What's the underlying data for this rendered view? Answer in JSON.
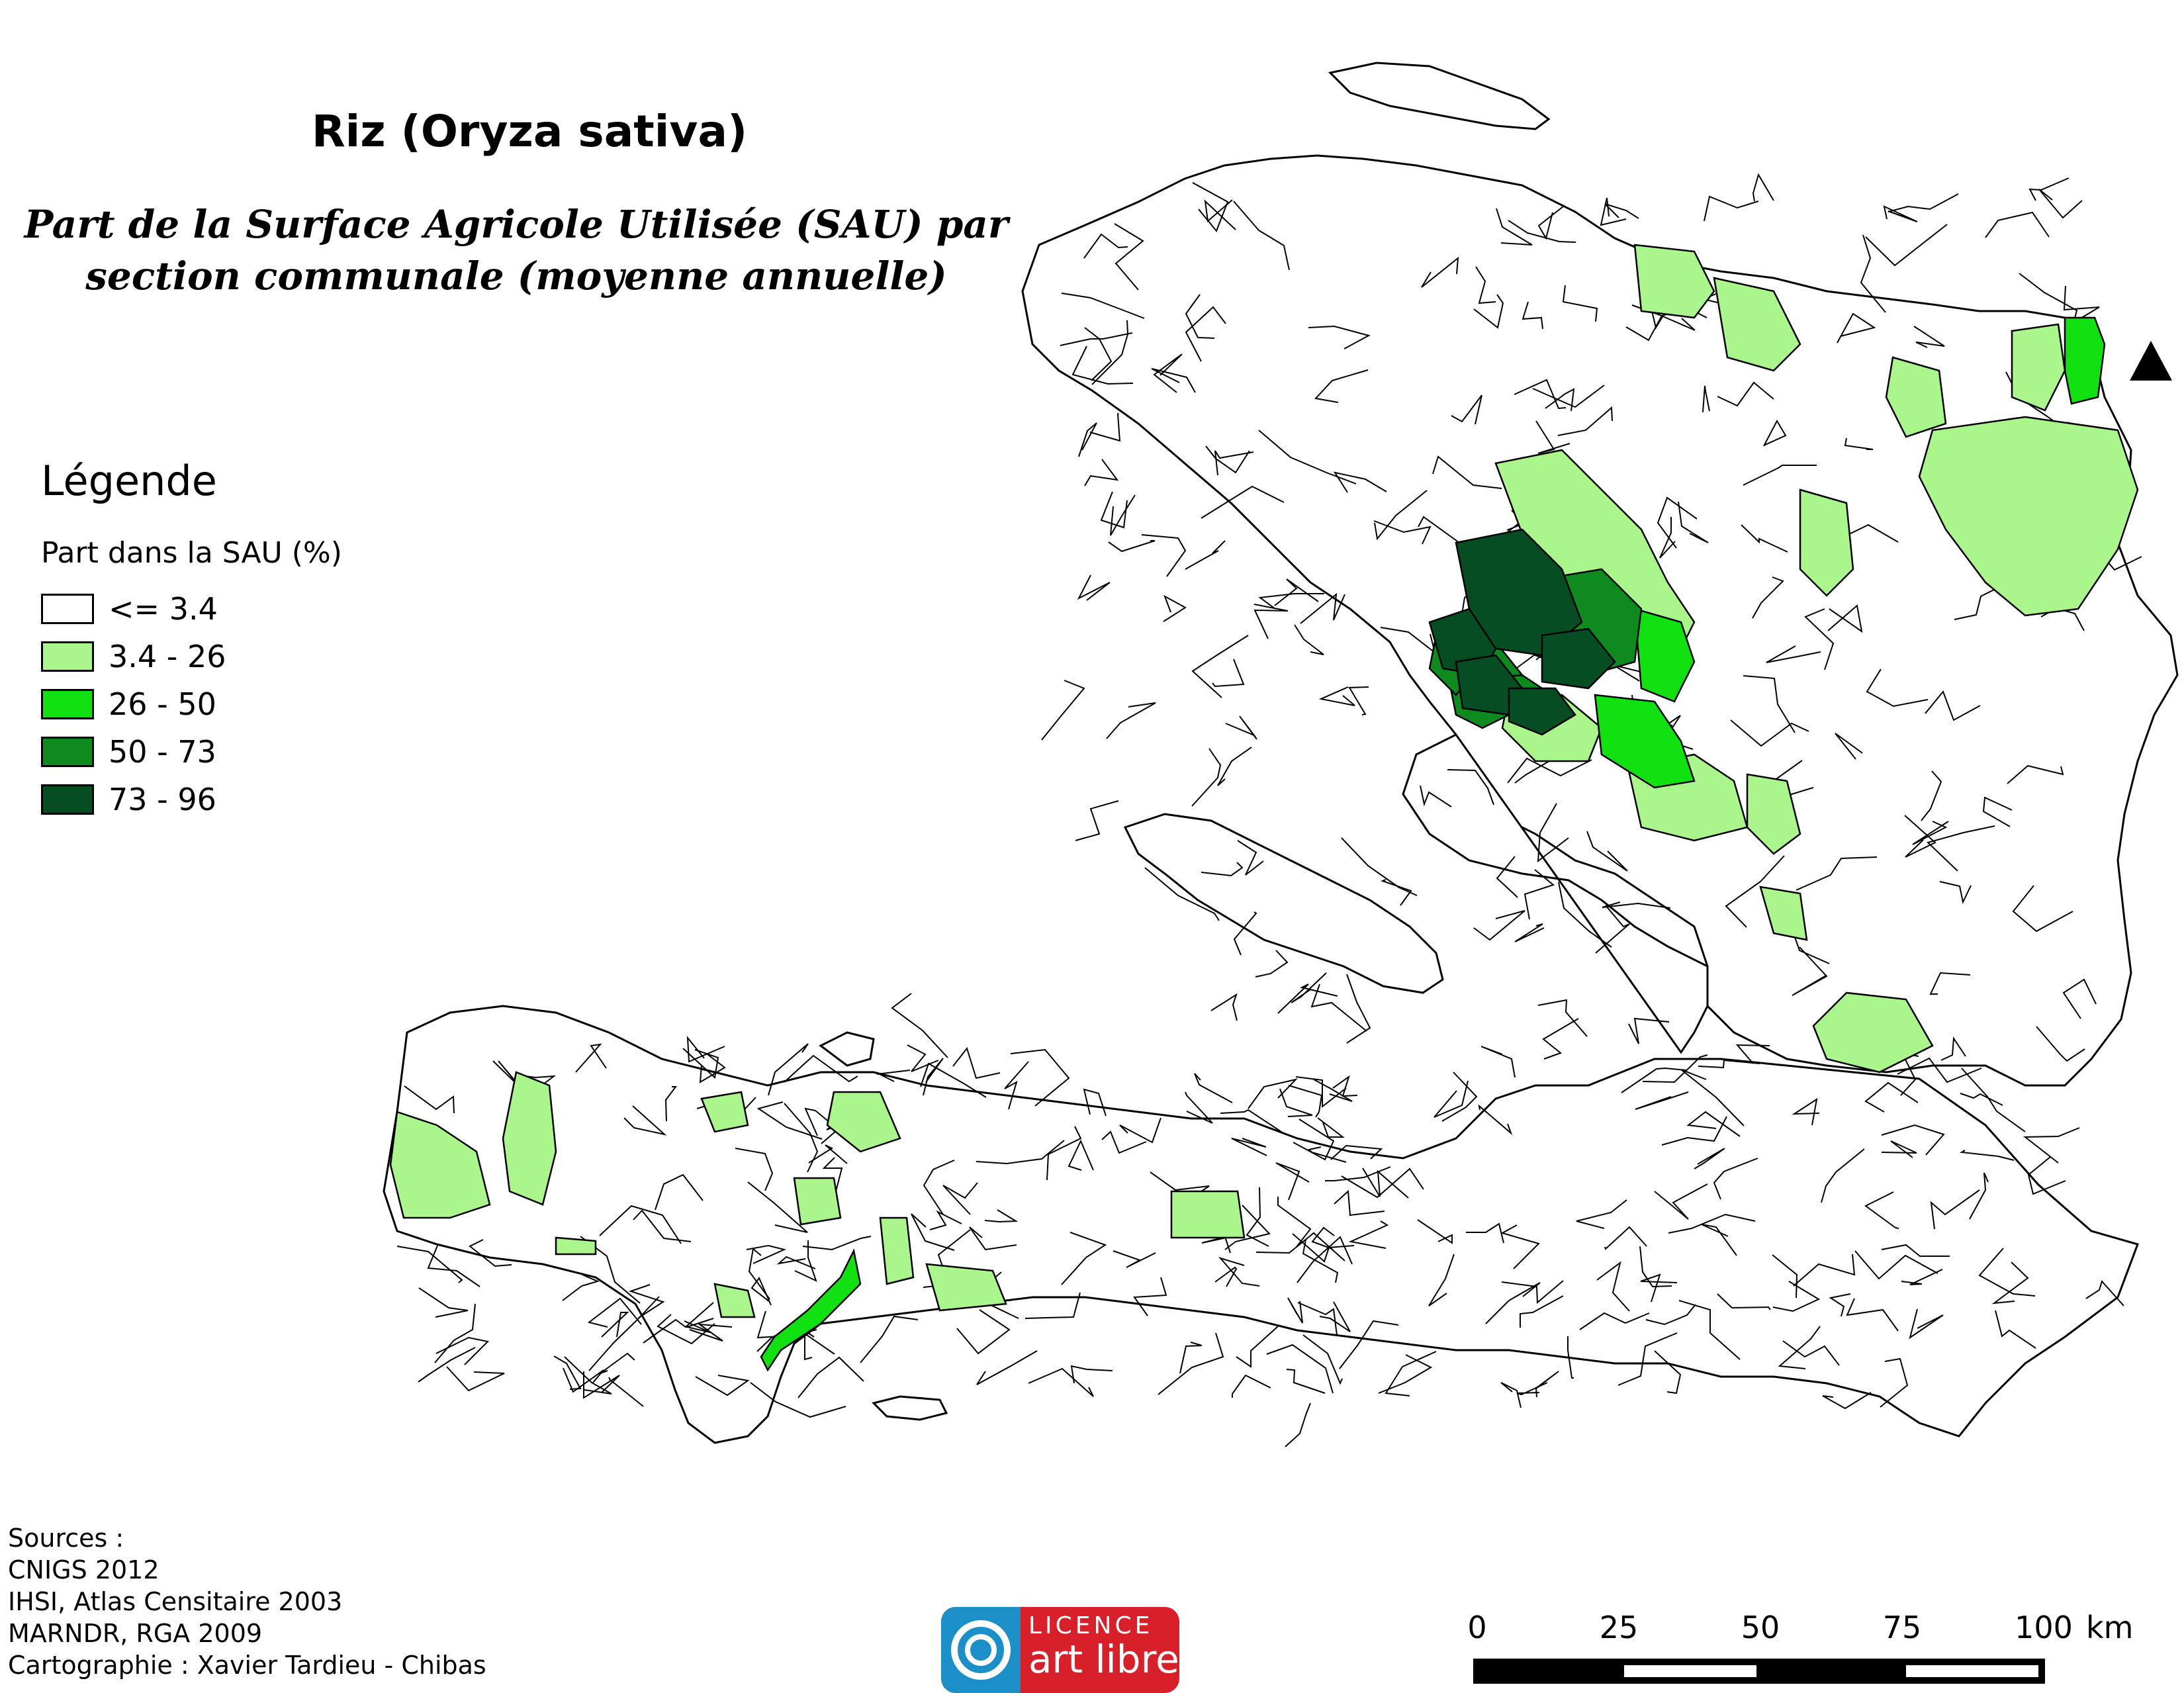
{
  "title": "Riz (Oryza sativa)",
  "subtitle_lines": [
    "Part de la Surface Agricole Utilisée (SAU) par",
    "section communale (moyenne annuelle)"
  ],
  "legend": {
    "title": "Légende",
    "subtitle": "Part dans la SAU (%)",
    "classes": [
      {
        "label": "<= 3.4",
        "color": "#ffffff"
      },
      {
        "label": "3.4 - 26",
        "color": "#aaf58c"
      },
      {
        "label": "26 - 50",
        "color": "#11e011"
      },
      {
        "label": "50 - 73",
        "color": "#0e8a1f"
      },
      {
        "label": "73 - 96",
        "color": "#074d24"
      }
    ]
  },
  "sources": {
    "lines": [
      "Sources :",
      "CNIGS 2012",
      "IHSI, Atlas Censitaire 2003",
      "MARNDR, RGA 2009",
      "Cartographie : Xavier Tardieu - Chibas"
    ]
  },
  "licence": {
    "top": "LICENCE",
    "bottom": "art libre",
    "colors": {
      "left": "#1a8fc8",
      "right": "#d8202a"
    }
  },
  "scale_bar": {
    "ticks": [
      "0",
      "25",
      "50",
      "75",
      "100"
    ],
    "unit": "km"
  },
  "north_arrow": "north-arrow-icon"
}
